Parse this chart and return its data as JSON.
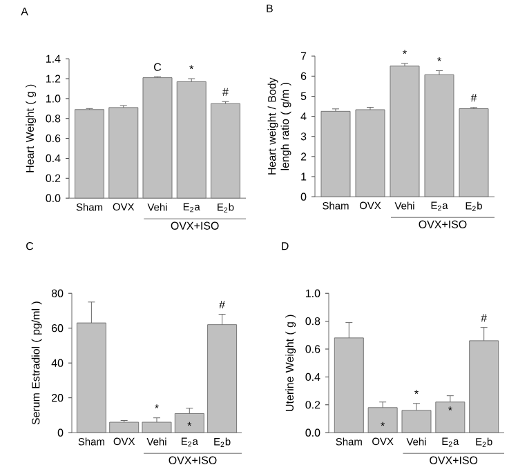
{
  "chart_data": [
    {
      "type": "bar",
      "title": "A",
      "ylabel": "Heart Weight ( g )",
      "categories": [
        "Sham",
        "OVX",
        "Vehi",
        "E$_{2}$a",
        "E$_{2}$b"
      ],
      "color": "#c0c0c0",
      "values": [
        0.89,
        0.91,
        1.21,
        1.17,
        0.95
      ],
      "errors": [
        [
          0.89,
          0.9
        ],
        [
          0.91,
          0.93
        ],
        [
          1.21,
          1.22
        ],
        [
          1.17,
          1.2
        ],
        [
          0.95,
          0.97
        ]
      ],
      "ylim": [
        0,
        1.4
      ],
      "yticks": [
        {
          "value": 0,
          "label": "0.0"
        },
        {
          "value": 0.2,
          "label": "0.2"
        },
        {
          "value": 0.4,
          "label": "0.4"
        },
        {
          "value": 0.6,
          "label": "0.6"
        },
        {
          "value": 0.8,
          "label": "0.8"
        },
        {
          "value": 1,
          "label": "1.0"
        },
        {
          "value": 1.2,
          "label": "1.2"
        },
        {
          "value": 1.4,
          "label": "1.4"
        }
      ],
      "annotations": [
        "C",
        "*",
        "#",
        "OVX+ISO"
      ]
    },
    {
      "type": "bar",
      "title": "B",
      "ylabel": "Heart weight / Body lengh ratio ( g/m )",
      "categories": [
        "Sham",
        "OVX",
        "Vehi",
        "E$_{2}$a",
        "E$_{2}$b"
      ],
      "color": "#c0c0c0",
      "values": [
        4.25,
        4.33,
        6.5,
        6.07,
        4.38
      ],
      "errors": [
        [
          4.25,
          4.37
        ],
        [
          4.33,
          4.45
        ],
        [
          6.5,
          6.63
        ],
        [
          6.07,
          6.27
        ],
        [
          4.38,
          4.44
        ]
      ],
      "ylim": [
        0,
        7
      ],
      "yticks": [
        0,
        1,
        2,
        3,
        4,
        5,
        6,
        7
      ],
      "annotations": [
        "*",
        "*",
        "#",
        "OVX+ISO"
      ]
    },
    {
      "type": "bar",
      "title": "C",
      "ylabel": "Serum Estradiol ( pg/ml )",
      "categories": [
        "Sham",
        "OVX",
        "Vehi",
        "E$_{2}$a",
        "E$_{2}$b"
      ],
      "color": "#c0c0c0",
      "values": [
        63,
        6,
        6,
        11,
        62
      ],
      "errors": [
        [
          63,
          75
        ],
        [
          6,
          7
        ],
        [
          6,
          8.5
        ],
        [
          11,
          14
        ],
        [
          62,
          68
        ]
      ],
      "ylim": [
        0,
        80
      ],
      "yticks": [
        0,
        20,
        40,
        60,
        80
      ],
      "annotations": [
        "*",
        "*",
        "#",
        "OVX+ISO"
      ]
    },
    {
      "type": "bar",
      "title": "D",
      "ylabel": "Uterine Weight ( g )",
      "categories": [
        "Sham",
        "OVX",
        "Vehi",
        "E$_{2}$a",
        "E$_{2}$b"
      ],
      "color": "#c0c0c0",
      "values": [
        0.68,
        0.18,
        0.16,
        0.22,
        0.66
      ],
      "errors": [
        [
          0.68,
          0.79
        ],
        [
          0.18,
          0.22
        ],
        [
          0.16,
          0.21
        ],
        [
          0.22,
          0.265
        ],
        [
          0.66,
          0.755
        ]
      ],
      "ylim": [
        0,
        1
      ],
      "yticks": [
        {
          "value": 0,
          "label": "0.0"
        },
        {
          "value": 0.2,
          "label": "0.2"
        },
        {
          "value": 0.4,
          "label": "0.4"
        },
        {
          "value": 0.6,
          "label": "0.6"
        },
        {
          "value": 0.8,
          "label": "0.8"
        },
        {
          "value": 1,
          "label": "1.0"
        }
      ],
      "annotations": [
        "*",
        "*",
        "*",
        "#",
        "OVX+ISO"
      ]
    }
  ]
}
